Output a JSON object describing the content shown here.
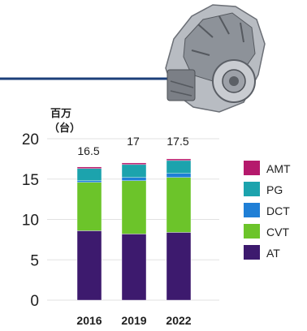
{
  "chart_data": {
    "type": "bar",
    "stacked": true,
    "categories": [
      "2016",
      "2019",
      "2022"
    ],
    "series": [
      {
        "name": "AT",
        "values": [
          8.6,
          8.2,
          8.4
        ]
      },
      {
        "name": "CVT",
        "values": [
          6.0,
          6.6,
          6.8
        ]
      },
      {
        "name": "DCT",
        "values": [
          0.2,
          0.4,
          0.5
        ]
      },
      {
        "name": "PG",
        "values": [
          1.5,
          1.6,
          1.6
        ]
      },
      {
        "name": "AMT",
        "values": [
          0.2,
          0.2,
          0.2
        ]
      }
    ],
    "totals": [
      "16.5",
      "17",
      "17.5"
    ],
    "unit_label": "百万\n（台）",
    "yticks": [
      "0",
      "5",
      "10",
      "15",
      "20"
    ],
    "ylim": [
      0,
      20
    ],
    "grid": true,
    "legend_position": "right",
    "legend_order": [
      "AMT",
      "PG",
      "DCT",
      "CVT",
      "AT"
    ],
    "colors": {
      "AT": "#3d1a6e",
      "CVT": "#6cc42a",
      "DCT": "#1f7fd6",
      "PG": "#1ca3ad",
      "AMT": "#b5196c",
      "accent_line": "#1c3f7a"
    },
    "decoration": {
      "illustration": "transmission-gearbox-image"
    }
  }
}
